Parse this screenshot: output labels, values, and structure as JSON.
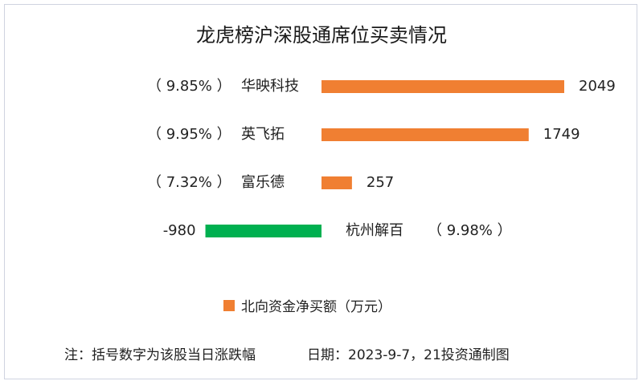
{
  "title": "龙虎榜沪深股通席位买卖情况",
  "chart_data": {
    "type": "bar",
    "orientation": "horizontal",
    "categories": [
      "华映科技",
      "英飞拓",
      "富乐德",
      "杭州解百"
    ],
    "change_labels": [
      "（ 9.85% ）",
      "（ 9.95% ）",
      "（ 7.32% ）",
      "（ 9.98% ）"
    ],
    "values": [
      2049,
      1749,
      257,
      -980
    ],
    "value_labels": [
      "2049",
      "1749",
      "257",
      "-980"
    ],
    "series": [
      {
        "name": "北向资金净买额（万元）",
        "values": [
          2049,
          1749,
          257,
          -980
        ]
      }
    ],
    "colors": {
      "positive": "#f07f32",
      "negative": "#00b050"
    },
    "legend": "bottom-center"
  },
  "legend": {
    "label": "北向资金净买额（万元）",
    "color": "#f07f32"
  },
  "footer": {
    "note": "注：括号数字为该股当日涨跌幅",
    "date": "日期：2023-9-7，21投资通制图"
  }
}
